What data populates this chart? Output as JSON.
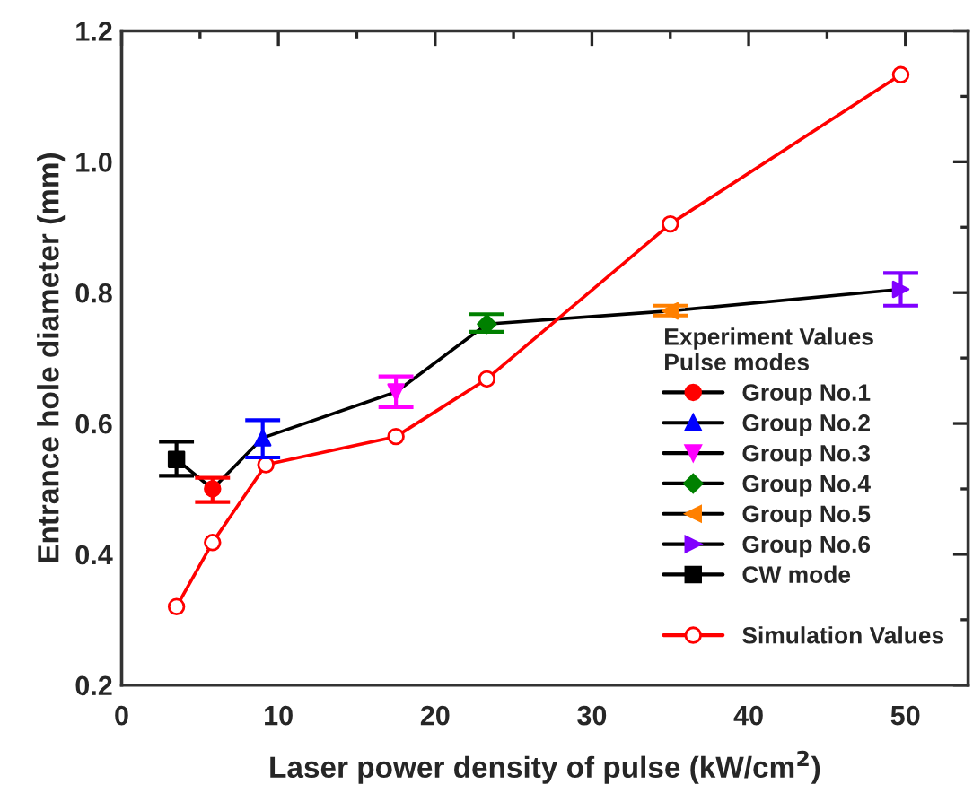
{
  "chart_data": {
    "type": "scatter",
    "xlabel": "Laser power density of pulse (kW/cm$^{2}$)",
    "ylabel": "Entrance hole diameter (mm)",
    "legend_title": "Experiment Values\nPulse modes",
    "series": [
      {
        "type": "line",
        "color": "#000000",
        "marker": "none",
        "x": [
          3.5,
          5.8,
          9.0,
          17.5,
          23.3,
          35.0,
          49.7
        ],
        "values": [
          0.545,
          0.5,
          0.578,
          0.648,
          0.752,
          0.772,
          0.805
        ]
      },
      {
        "name": "Group No.1",
        "color": "#ff0000",
        "marker": "circle",
        "x": [
          5.8
        ],
        "values": [
          0.5
        ],
        "errors": [
          [
            0.48,
            0.517
          ]
        ]
      },
      {
        "name": "Group No.2",
        "color": "#0000ff",
        "marker": "triangle",
        "x": [
          9.0
        ],
        "values": [
          0.578
        ],
        "errors": [
          [
            0.548,
            0.605
          ]
        ]
      },
      {
        "name": "Group No.3",
        "color": "#ff00ff",
        "marker": "triangle_down",
        "x": [
          17.5
        ],
        "values": [
          0.648
        ],
        "errors": [
          [
            0.625,
            0.672
          ]
        ]
      },
      {
        "name": "Group No.4",
        "color": "#008000",
        "marker": "diamond",
        "x": [
          23.3
        ],
        "values": [
          0.752
        ],
        "errors": [
          [
            0.74,
            0.767
          ]
        ]
      },
      {
        "name": "Group No.5",
        "color": "#ff8000",
        "marker": "triangle_left",
        "x": [
          35.0
        ],
        "values": [
          0.772
        ],
        "errors": [
          [
            0.765,
            0.78
          ]
        ]
      },
      {
        "name": "Group No.6",
        "color": "#8000ff",
        "marker": "triangle_right",
        "x": [
          49.7
        ],
        "values": [
          0.805
        ],
        "errors": [
          [
            0.78,
            0.83
          ]
        ]
      },
      {
        "name": "CW mode",
        "color": "#000000",
        "marker": "square",
        "x": [
          3.5
        ],
        "values": [
          0.545
        ],
        "errors": [
          [
            0.52,
            0.572
          ]
        ]
      },
      {
        "name": "Simulation Values",
        "type": "line",
        "color": "#ff0000",
        "marker": "circle_open",
        "x": [
          3.5,
          5.8,
          9.2,
          17.5,
          23.3,
          35.0,
          49.7
        ],
        "values": [
          0.32,
          0.418,
          0.537,
          0.58,
          0.668,
          0.905,
          1.133
        ]
      }
    ],
    "xlim": [
      0,
      54
    ],
    "xticks": [
      0,
      10,
      20,
      30,
      40,
      50
    ],
    "ylim": [
      0.2,
      1.2
    ],
    "yticks": [
      {
        "value": 0.2,
        "label": "0.2"
      },
      {
        "value": 0.4,
        "label": "0.4"
      },
      {
        "value": 0.6,
        "label": "0.6"
      },
      {
        "value": 0.8,
        "label": "0.8"
      },
      {
        "value": 1.0,
        "label": "1.0"
      },
      {
        "value": 1.2,
        "label": "1.2"
      }
    ],
    "grid": false,
    "legend": "bottom right"
  }
}
